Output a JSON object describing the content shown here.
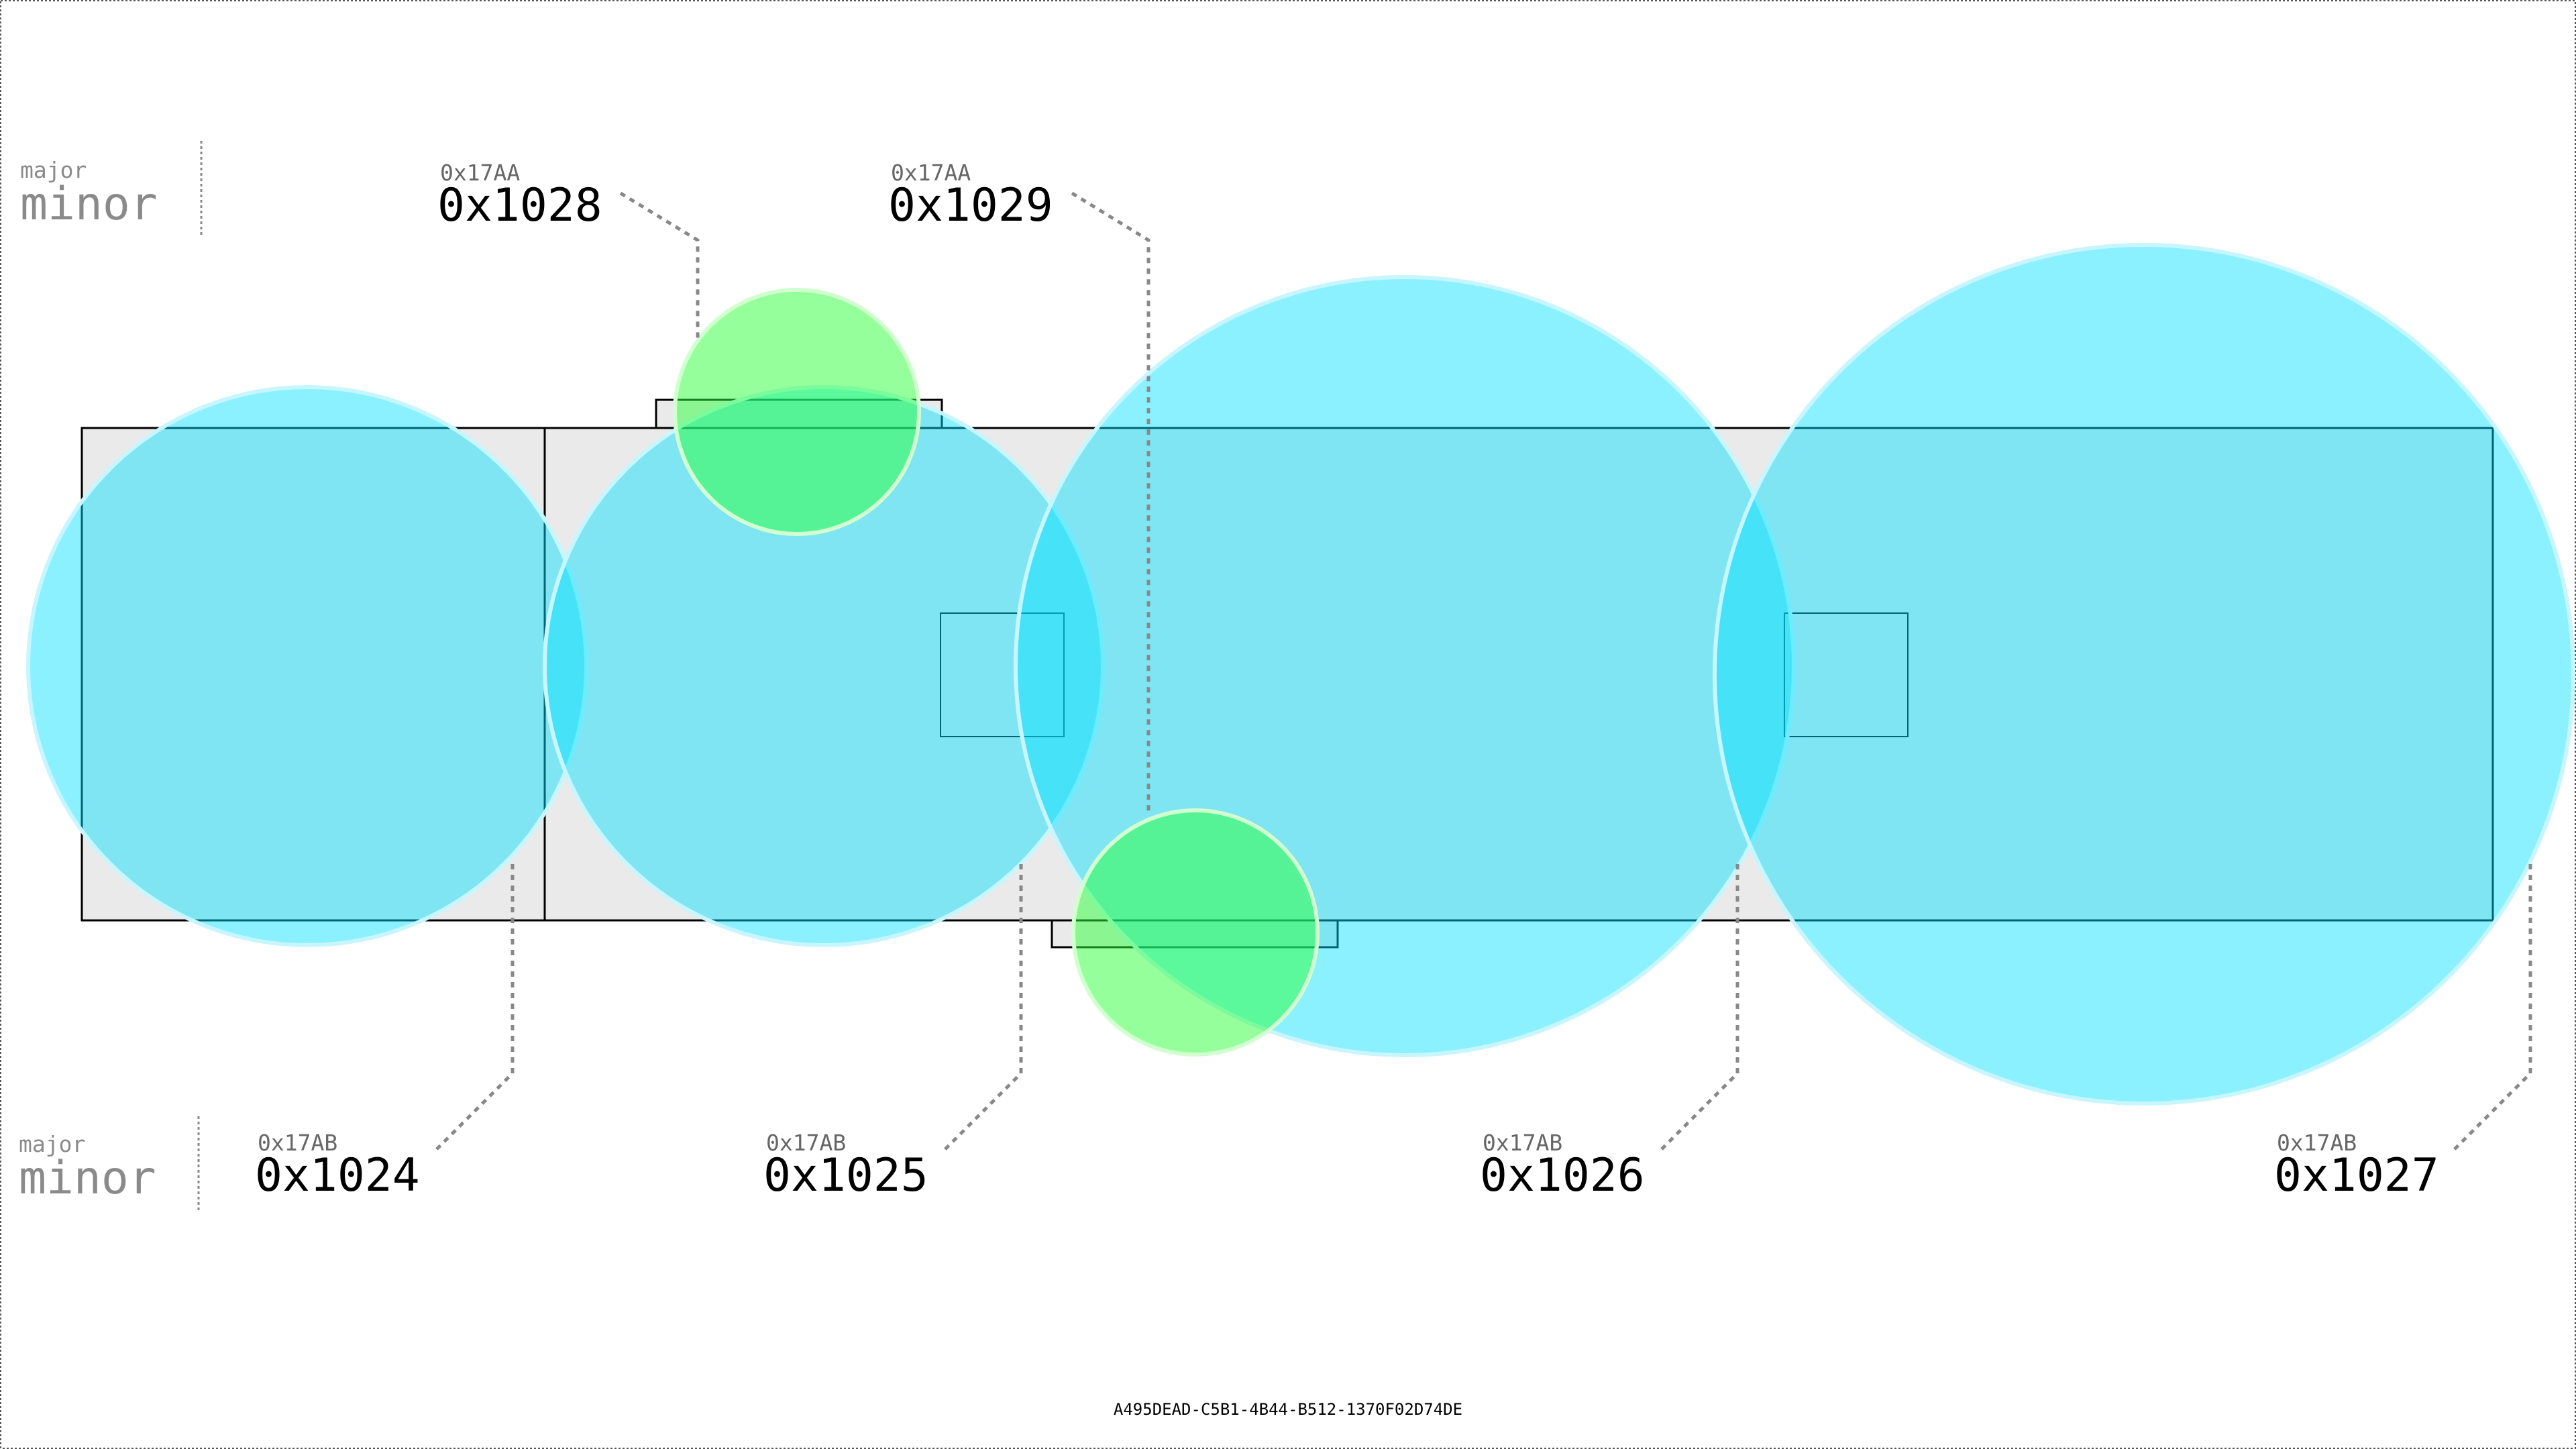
{
  "legend": {
    "top": {
      "major": "major",
      "minor": "minor"
    },
    "bottom": {
      "major": "major",
      "minor": "minor"
    }
  },
  "top_labels": [
    {
      "id": "label-0x1028",
      "major": "0x17AA",
      "minor": "0x1028"
    },
    {
      "id": "label-0x1029",
      "major": "0x17AA",
      "minor": "0x1029"
    }
  ],
  "bottom_labels": [
    {
      "id": "label-0x1024",
      "major": "0x17AB",
      "minor": "0x1024"
    },
    {
      "id": "label-0x1025",
      "major": "0x17AB",
      "minor": "0x1025"
    },
    {
      "id": "label-0x1026",
      "major": "0x17AB",
      "minor": "0x1026"
    },
    {
      "id": "label-0x1027",
      "major": "0x17AB",
      "minor": "0x1027"
    }
  ],
  "footer": {
    "id_text": "A495DEAD-C5B1-4B44-B512-1370F02D74DE"
  },
  "colors": {
    "background": "#ffffff",
    "board_fill": "#eaeaea",
    "outline": "#000000",
    "cyan_circle": "#00e1ff",
    "green_circle": "#2bff3a",
    "leader": "#888888",
    "legend_text": "#8a8a8a",
    "label_text": "#000000"
  }
}
